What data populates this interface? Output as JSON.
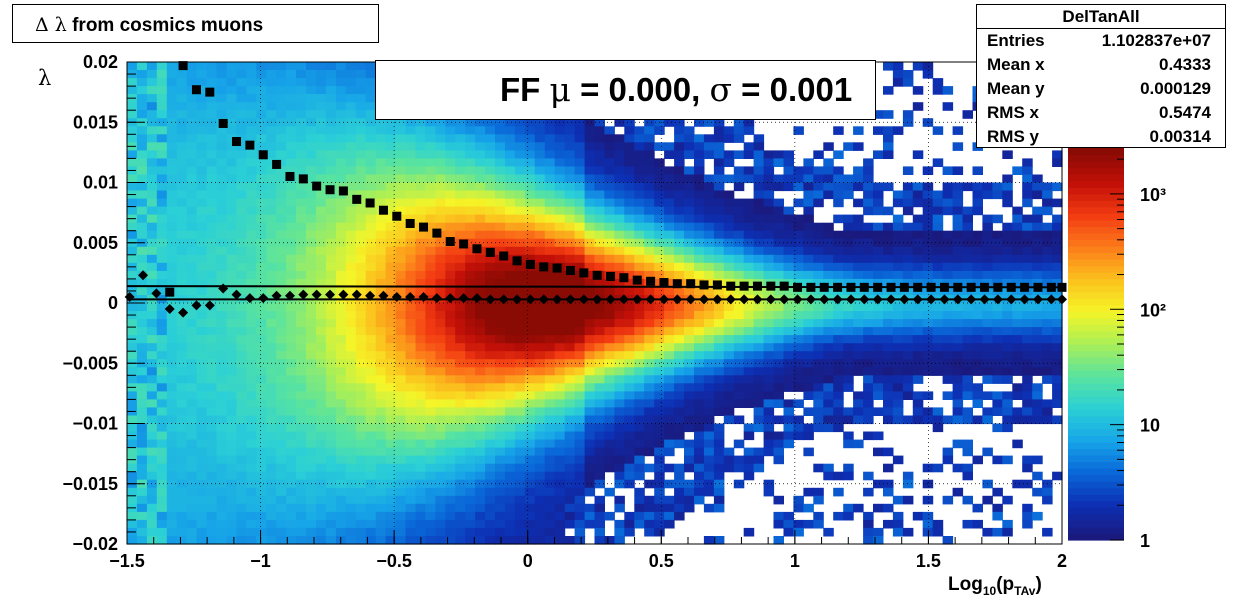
{
  "title": {
    "prefix": "Δ λ",
    "text": "from cosmics muons"
  },
  "stats": {
    "name": "DelTanAll",
    "rows": [
      {
        "label": "Entries",
        "value": "1.102837e+07"
      },
      {
        "label": "Mean x",
        "value": "0.4333"
      },
      {
        "label": "Mean y",
        "value": "0.000129"
      },
      {
        "label": "RMS x",
        "value": "0.5474"
      },
      {
        "label": "RMS y",
        "value": "0.00314"
      }
    ]
  },
  "legend": {
    "prefix": "FF",
    "mu_symbol": "μ",
    "mu_text": " =  0.000, ",
    "sigma_symbol": "σ",
    "sigma_text": " =   0.001"
  },
  "axes": {
    "xlabel_main": "Log",
    "xlabel_sub": "10",
    "xlabel_open": "(p",
    "xlabel_sub2": "TAv",
    "xlabel_close": ")",
    "ylabel": "λ"
  },
  "colors": {
    "palette": [
      "#1a1a7e",
      "#0d2fb3",
      "#0a67d8",
      "#17a5e8",
      "#2bd0d6",
      "#58e3a0",
      "#a8ef58",
      "#f5f528",
      "#fbc21d",
      "#fc7d1a",
      "#f33c12",
      "#c21008",
      "#8a0a04"
    ]
  },
  "chart_data": {
    "type": "heatmap",
    "xlim": [
      -1.5,
      2
    ],
    "ylim": [
      -0.02,
      0.02
    ],
    "x_ticks": [
      -1.5,
      -1,
      -0.5,
      0,
      0.5,
      1,
      1.5,
      2
    ],
    "x_tick_labels": [
      "−1.5",
      "−1",
      "−0.5",
      "0",
      "0.5",
      "1",
      "1.5",
      "2"
    ],
    "y_ticks": [
      0.02,
      0.015,
      0.01,
      0.005,
      0,
      -0.005,
      -0.01,
      -0.015,
      -0.02
    ],
    "y_tick_labels": [
      "0.02",
      "0.015",
      "0.01",
      "0.005",
      "0",
      "−0.005",
      "−0.01",
      "−0.015",
      "−0.02"
    ],
    "z_scale": "log",
    "z_ticks": [
      1,
      10,
      100,
      1000
    ],
    "z_tick_labels": [
      "1",
      "10",
      "10²",
      "10³"
    ],
    "grid": true,
    "series": [
      {
        "name": "FF",
        "marker": "diamond",
        "points": [
          [
            -1.49,
            0.0005
          ],
          [
            -1.44,
            0.0023
          ],
          [
            -1.39,
            0.0008
          ],
          [
            -1.34,
            -0.0005
          ],
          [
            -1.29,
            -0.0008
          ],
          [
            -1.24,
            -0.0002
          ],
          [
            -1.19,
            -0.0002
          ],
          [
            -1.14,
            0.0012
          ],
          [
            -1.09,
            0.0007
          ],
          [
            -1.04,
            0.0004
          ],
          [
            -0.99,
            0.0004
          ],
          [
            -0.94,
            0.0006
          ],
          [
            -0.89,
            0.0006
          ],
          [
            -0.84,
            0.0007
          ],
          [
            -0.79,
            0.0007
          ],
          [
            -0.74,
            0.0007
          ],
          [
            -0.69,
            0.0007
          ],
          [
            -0.64,
            0.0007
          ],
          [
            -0.59,
            0.0006
          ],
          [
            -0.54,
            0.0006
          ],
          [
            -0.49,
            0.0005
          ],
          [
            -0.44,
            0.0005
          ],
          [
            -0.39,
            0.0005
          ],
          [
            -0.34,
            0.0004
          ],
          [
            -0.29,
            0.0004
          ],
          [
            -0.24,
            0.0004
          ],
          [
            -0.19,
            0.0004
          ],
          [
            -0.14,
            0.0003
          ],
          [
            -0.09,
            0.0003
          ],
          [
            -0.04,
            0.0003
          ],
          [
            0.01,
            0.0003
          ],
          [
            0.06,
            0.0003
          ],
          [
            0.11,
            0.0003
          ],
          [
            0.16,
            0.0003
          ],
          [
            0.21,
            0.0003
          ],
          [
            0.26,
            0.0003
          ],
          [
            0.31,
            0.0003
          ],
          [
            0.36,
            0.0003
          ],
          [
            0.41,
            0.0003
          ],
          [
            0.46,
            0.0003
          ],
          [
            0.51,
            0.0003
          ],
          [
            0.56,
            0.0003
          ],
          [
            0.61,
            0.0003
          ],
          [
            0.66,
            0.0003
          ],
          [
            0.71,
            0.0003
          ],
          [
            0.76,
            0.0003
          ],
          [
            0.81,
            0.0003
          ],
          [
            0.86,
            0.0003
          ],
          [
            0.91,
            0.0003
          ],
          [
            0.96,
            0.0003
          ],
          [
            1.01,
            0.0003
          ],
          [
            1.06,
            0.0003
          ],
          [
            1.11,
            0.0003
          ],
          [
            1.16,
            0.0003
          ],
          [
            1.21,
            0.0003
          ],
          [
            1.26,
            0.0003
          ],
          [
            1.31,
            0.0003
          ],
          [
            1.36,
            0.0003
          ],
          [
            1.41,
            0.0003
          ],
          [
            1.46,
            0.0003
          ],
          [
            1.51,
            0.0003
          ],
          [
            1.56,
            0.0003
          ],
          [
            1.61,
            0.0003
          ],
          [
            1.66,
            0.0003
          ],
          [
            1.71,
            0.0003
          ],
          [
            1.76,
            0.0003
          ],
          [
            1.81,
            0.0003
          ],
          [
            1.86,
            0.0003
          ],
          [
            1.91,
            0.0003
          ],
          [
            1.96,
            0.0003
          ],
          [
            2.0,
            0.0003
          ]
        ]
      },
      {
        "name": "",
        "marker": "square",
        "points": [
          [
            -1.34,
            0.0009
          ],
          [
            -1.29,
            0.0197
          ],
          [
            -1.24,
            0.0177
          ],
          [
            -1.19,
            0.0175
          ],
          [
            -1.14,
            0.0149
          ],
          [
            -1.09,
            0.0134
          ],
          [
            -1.04,
            0.0131
          ],
          [
            -0.99,
            0.0123
          ],
          [
            -0.94,
            0.0115
          ],
          [
            -0.89,
            0.0105
          ],
          [
            -0.84,
            0.0103
          ],
          [
            -0.79,
            0.0097
          ],
          [
            -0.74,
            0.0094
          ],
          [
            -0.69,
            0.0093
          ],
          [
            -0.64,
            0.0086
          ],
          [
            -0.59,
            0.0083
          ],
          [
            -0.54,
            0.0077
          ],
          [
            -0.49,
            0.0072
          ],
          [
            -0.44,
            0.0066
          ],
          [
            -0.39,
            0.0063
          ],
          [
            -0.34,
            0.0058
          ],
          [
            -0.29,
            0.0051
          ],
          [
            -0.24,
            0.0049
          ],
          [
            -0.19,
            0.0045
          ],
          [
            -0.14,
            0.0042
          ],
          [
            -0.09,
            0.0039
          ],
          [
            -0.04,
            0.0035
          ],
          [
            0.01,
            0.0032
          ],
          [
            0.06,
            0.003
          ],
          [
            0.11,
            0.0029
          ],
          [
            0.16,
            0.0027
          ],
          [
            0.21,
            0.0025
          ],
          [
            0.26,
            0.0023
          ],
          [
            0.31,
            0.0022
          ],
          [
            0.36,
            0.0021
          ],
          [
            0.41,
            0.0019
          ],
          [
            0.46,
            0.0018
          ],
          [
            0.51,
            0.0017
          ],
          [
            0.56,
            0.0016
          ],
          [
            0.61,
            0.0016
          ],
          [
            0.66,
            0.0015
          ],
          [
            0.71,
            0.0015
          ],
          [
            0.76,
            0.0014
          ],
          [
            0.81,
            0.0014
          ],
          [
            0.86,
            0.0014
          ],
          [
            0.91,
            0.0014
          ],
          [
            0.96,
            0.0014
          ],
          [
            1.01,
            0.0013
          ],
          [
            1.06,
            0.0013
          ],
          [
            1.11,
            0.0013
          ],
          [
            1.16,
            0.0013
          ],
          [
            1.21,
            0.0013
          ],
          [
            1.26,
            0.0013
          ],
          [
            1.31,
            0.0013
          ],
          [
            1.36,
            0.0013
          ],
          [
            1.41,
            0.0013
          ],
          [
            1.46,
            0.0013
          ],
          [
            1.51,
            0.0013
          ],
          [
            1.56,
            0.0013
          ],
          [
            1.61,
            0.0013
          ],
          [
            1.66,
            0.0013
          ],
          [
            1.71,
            0.0013
          ],
          [
            1.76,
            0.0013
          ],
          [
            1.81,
            0.0013
          ],
          [
            1.86,
            0.0013
          ],
          [
            1.91,
            0.0013
          ],
          [
            1.96,
            0.0013
          ],
          [
            2.0,
            0.0013
          ]
        ]
      }
    ],
    "lines": [
      {
        "x": [
          -1.5,
          2
        ],
        "y": [
          0.0014,
          0.0013
        ]
      },
      {
        "x": [
          -1.5,
          2
        ],
        "y": [
          0.0003,
          0.0003
        ]
      }
    ]
  }
}
